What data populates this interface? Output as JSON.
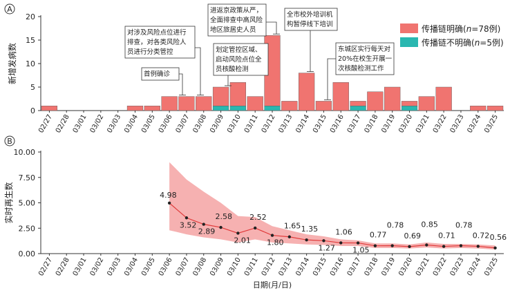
{
  "chart_data": [
    {
      "type": "bar",
      "panel_label": "A",
      "ylabel": "新增发病数",
      "ylim": [
        0,
        20
      ],
      "yticks": [
        0,
        5,
        10,
        15,
        20
      ],
      "categories": [
        "02/27",
        "02/28",
        "03/01",
        "03/02",
        "03/03",
        "03/04",
        "03/05",
        "03/06",
        "03/07",
        "03/08",
        "03/09",
        "03/10",
        "03/11",
        "03/12",
        "03/13",
        "03/14",
        "03/15",
        "03/16",
        "03/17",
        "03/18",
        "03/19",
        "03/20",
        "03/21",
        "03/22",
        "03/23",
        "03/24",
        "03/25"
      ],
      "stacked": true,
      "series": [
        {
          "name_parts": [
            "传播链明确(",
            "n",
            "=78例)"
          ],
          "color": "#f07470",
          "values": [
            1,
            0,
            0,
            0,
            0,
            1,
            1,
            3,
            3,
            3,
            4,
            5,
            3,
            15,
            2,
            8,
            2,
            6,
            1,
            4,
            5,
            1,
            3,
            5,
            0,
            1,
            1
          ]
        },
        {
          "name_parts": [
            "传播链不明确(",
            "n",
            "=5例)"
          ],
          "color": "#2ab7b0",
          "values": [
            0,
            0,
            0,
            0,
            0,
            0,
            0,
            0,
            0,
            0,
            1,
            1,
            0,
            1,
            0,
            0,
            0,
            0,
            1,
            0,
            0,
            1,
            0,
            0,
            0,
            0,
            0
          ]
        }
      ],
      "legend_position": "top-right",
      "annotations": [
        {
          "lines": [
            "首例确诊"
          ],
          "date": "03/06"
        },
        {
          "lines": [
            "对涉及风险点位进行",
            "排查，对各类风险人",
            "员进行分类管控"
          ],
          "date": "03/08"
        },
        {
          "lines": [
            "划定管控区域、",
            "启动风险点位全",
            "员核酸检测"
          ],
          "date": "03/09"
        },
        {
          "lines": [
            "进返京政策从严，",
            "全面排查中高风险",
            "地区旅居史人员"
          ],
          "date": "03/12"
        },
        {
          "lines": [
            "全市校外培训机",
            "构暂停线下培训"
          ],
          "date": "03/14"
        },
        {
          "lines": [
            "东城区实行每天对",
            "20%在校生开展一",
            "次核酸检测工作"
          ],
          "date": "03/15"
        }
      ]
    },
    {
      "type": "line",
      "panel_label": "B",
      "ylabel": "实时再生数",
      "xlabel": "日期(月/日)",
      "ylim": [
        0,
        10
      ],
      "yticks": [
        "0.00",
        "2.50",
        "5.00",
        "7.50",
        "10.00"
      ],
      "categories": [
        "02/27",
        "02/28",
        "03/01",
        "03/02",
        "03/03",
        "03/04",
        "03/05",
        "03/06",
        "03/07",
        "03/08",
        "03/09",
        "03/10",
        "03/11",
        "03/12",
        "03/13",
        "03/14",
        "03/15",
        "03/16",
        "03/17",
        "03/18",
        "03/19",
        "03/20",
        "03/21",
        "03/22",
        "03/23",
        "03/24",
        "03/25"
      ],
      "x": [
        "03/06",
        "03/07",
        "03/08",
        "03/09",
        "03/10",
        "03/11",
        "03/12",
        "03/13",
        "03/14",
        "03/15",
        "03/16",
        "03/17",
        "03/18",
        "03/19",
        "03/20",
        "03/21",
        "03/22",
        "03/23",
        "03/24",
        "03/25"
      ],
      "y": [
        4.98,
        3.52,
        2.89,
        2.58,
        2.01,
        2.52,
        1.8,
        1.65,
        1.35,
        1.27,
        1.06,
        1.05,
        0.77,
        0.78,
        0.69,
        0.85,
        0.71,
        0.78,
        0.72,
        0.56
      ],
      "labels": [
        "4.98",
        "3.52",
        "2.89",
        "2.58",
        "2.01",
        "2.52",
        "1.80",
        "1.65",
        "1.35",
        "1.27",
        "1.06",
        "1.05",
        "0.77",
        "0.78",
        "0.69",
        "0.85",
        "0.71",
        "0.78",
        "0.72",
        "0.56"
      ],
      "ci_upper": [
        9.0,
        7.3,
        6.1,
        5.0,
        3.7,
        3.6,
        2.7,
        2.3,
        1.9,
        1.7,
        1.4,
        1.3,
        1.0,
        1.0,
        0.9,
        1.1,
        0.95,
        0.95,
        0.9,
        0.8
      ],
      "ci_lower": [
        2.3,
        1.9,
        1.6,
        1.4,
        1.1,
        1.4,
        1.1,
        1.0,
        0.9,
        0.85,
        0.75,
        0.75,
        0.55,
        0.55,
        0.5,
        0.6,
        0.5,
        0.55,
        0.5,
        0.4
      ],
      "line_color": "#e03a3a",
      "band_color": "#f5a3a3"
    }
  ]
}
